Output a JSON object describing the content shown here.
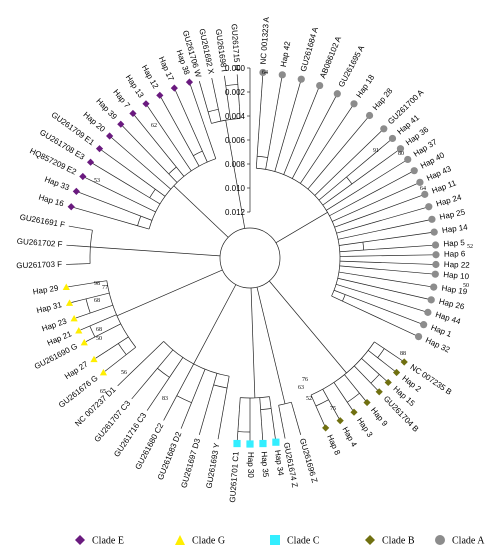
{
  "colors": {
    "E": "#6a1a7f",
    "G": "#ffee00",
    "C": "#33eeff",
    "B": "#707010",
    "A": "#8c8c8c"
  },
  "scale_axis": {
    "ticks": [
      "0.000",
      "0.002",
      "0.004",
      "0.006",
      "0.008",
      "0.010",
      "0.012"
    ]
  },
  "legend": [
    {
      "clade": "E",
      "shape": "diamond",
      "label": "Clade E"
    },
    {
      "clade": "G",
      "shape": "triangle",
      "label": "Clade G"
    },
    {
      "clade": "C",
      "shape": "square",
      "label": "Clade C"
    },
    {
      "clade": "B",
      "shape": "diamond",
      "label": "Clade B"
    },
    {
      "clade": "A",
      "shape": "circle",
      "label": "Clade A"
    }
  ],
  "leaves": [
    {
      "label": "NC 001323 A",
      "clade": "A"
    },
    {
      "label": "Hap 42",
      "clade": "A"
    },
    {
      "label": "GU261684 A",
      "clade": "A"
    },
    {
      "label": "AB086102 A",
      "clade": "A"
    },
    {
      "label": "GU261695 A",
      "clade": "A"
    },
    {
      "label": "Hap 18",
      "clade": "A"
    },
    {
      "label": "Hap 28",
      "clade": "A"
    },
    {
      "label": "GU261700 A",
      "clade": "A"
    },
    {
      "label": "Hap 41",
      "clade": "A"
    },
    {
      "label": "Hap 36",
      "clade": "A"
    },
    {
      "label": "Hap 37",
      "clade": "A"
    },
    {
      "label": "Hap 40",
      "clade": "A"
    },
    {
      "label": "Hap 43",
      "clade": "A"
    },
    {
      "label": "Hap 11",
      "clade": "A"
    },
    {
      "label": "Hap 24",
      "clade": "A"
    },
    {
      "label": "Hap 25",
      "clade": "A"
    },
    {
      "label": "Hap 14",
      "clade": "A"
    },
    {
      "label": "Hap 5",
      "clade": "A"
    },
    {
      "label": "Hap 6",
      "clade": "A"
    },
    {
      "label": "Hap 22",
      "clade": "A"
    },
    {
      "label": "Hap 10",
      "clade": "A"
    },
    {
      "label": "Hap 19",
      "clade": "A"
    },
    {
      "label": "Hap 26",
      "clade": "A"
    },
    {
      "label": "Hap 44",
      "clade": "A"
    },
    {
      "label": "Hap 1",
      "clade": "A"
    },
    {
      "label": "Hap 32",
      "clade": "A"
    },
    {
      "label": "NC 007235 B",
      "clade": "B"
    },
    {
      "label": "Hap 2",
      "clade": "B"
    },
    {
      "label": "Hap 15",
      "clade": "B"
    },
    {
      "label": "GU261704 B",
      "clade": "B"
    },
    {
      "label": "Hap 9",
      "clade": "B"
    },
    {
      "label": "Hap 3",
      "clade": "B"
    },
    {
      "label": "Hap 4",
      "clade": "B"
    },
    {
      "label": "Hap 8",
      "clade": "B"
    },
    {
      "label": "GU261696 Z",
      "clade": ""
    },
    {
      "label": "GU261674 Z",
      "clade": ""
    },
    {
      "label": "Hap 34",
      "clade": "C"
    },
    {
      "label": "Hap 35",
      "clade": "C"
    },
    {
      "label": "Hap 30",
      "clade": "C"
    },
    {
      "label": "GU261701 C1",
      "clade": "C"
    },
    {
      "label": "GU261693 Y",
      "clade": ""
    },
    {
      "label": "GU261697 D3",
      "clade": ""
    },
    {
      "label": "GU261683 D2",
      "clade": ""
    },
    {
      "label": "GU261680 C2",
      "clade": ""
    },
    {
      "label": "GU261716 C3",
      "clade": ""
    },
    {
      "label": "GU261707 C3",
      "clade": ""
    },
    {
      "label": "NC 007237 D1",
      "clade": ""
    },
    {
      "label": "GU261676 G",
      "clade": "G"
    },
    {
      "label": "Hap 27",
      "clade": "G"
    },
    {
      "label": "GU261690 G",
      "clade": "G"
    },
    {
      "label": "Hap 21",
      "clade": "G"
    },
    {
      "label": "Hap 23",
      "clade": "G"
    },
    {
      "label": "Hap 31",
      "clade": "G"
    },
    {
      "label": "Hap 29",
      "clade": "G"
    },
    {
      "label": "GU261703 F",
      "clade": ""
    },
    {
      "label": "GU261702 F",
      "clade": ""
    },
    {
      "label": "GU261691 F",
      "clade": ""
    },
    {
      "label": "Hap 16",
      "clade": "E"
    },
    {
      "label": "Hap 33",
      "clade": "E"
    },
    {
      "label": "HQ857209 E2",
      "clade": "E"
    },
    {
      "label": "GU261708 E3",
      "clade": "E"
    },
    {
      "label": "GU261709 E1",
      "clade": "E"
    },
    {
      "label": "Hap 20",
      "clade": "E"
    },
    {
      "label": "Hap 39",
      "clade": "E"
    },
    {
      "label": "Hap 7",
      "clade": "E"
    },
    {
      "label": "Hap 13",
      "clade": "E"
    },
    {
      "label": "Hap 12",
      "clade": "E"
    },
    {
      "label": "Hap 17",
      "clade": "E"
    },
    {
      "label": "Hap 38",
      "clade": "E"
    },
    {
      "label": "GU261706 W",
      "clade": ""
    },
    {
      "label": "GU261692 X",
      "clade": ""
    },
    {
      "label": "GU261698 I",
      "clade": ""
    },
    {
      "label": "GU261715 H",
      "clade": ""
    }
  ],
  "bootstrap": [
    "64",
    "91",
    "80",
    "64",
    "52",
    "50",
    "88",
    "75",
    "52",
    "76",
    "63",
    "83",
    "56",
    "65",
    "50",
    "68",
    "68",
    "77",
    "98",
    "62",
    "53"
  ]
}
